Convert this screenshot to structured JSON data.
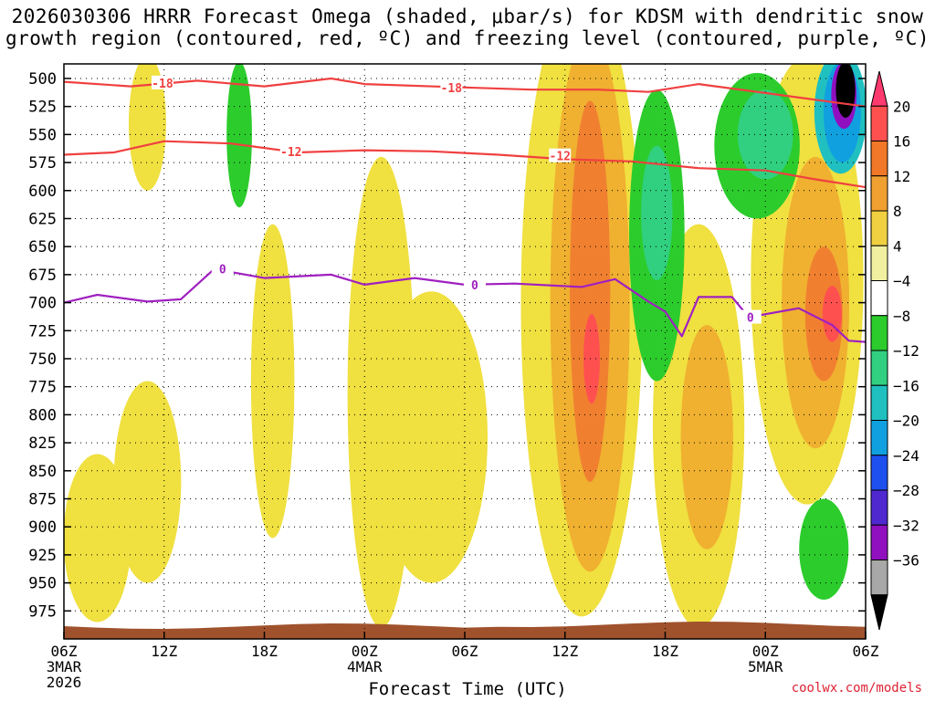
{
  "chart_data": {
    "type": "heatmap",
    "title_line1": "2026030306 HRRR Forecast Omega (shaded, μbar/s) for KDSM with dendritic snow",
    "title_line2": "growth region (contoured, red, ºC) and freezing level (contoured, purple, ºC)",
    "xlabel": "Forecast Time (UTC)",
    "x_ticks": [
      {
        "hour": 0,
        "label": "06Z",
        "sub1": "3MAR",
        "sub2": "2026"
      },
      {
        "hour": 6,
        "label": "12Z",
        "sub1": "",
        "sub2": ""
      },
      {
        "hour": 12,
        "label": "18Z",
        "sub1": "",
        "sub2": ""
      },
      {
        "hour": 18,
        "label": "00Z",
        "sub1": "4MAR",
        "sub2": ""
      },
      {
        "hour": 24,
        "label": "06Z",
        "sub1": "",
        "sub2": ""
      },
      {
        "hour": 30,
        "label": "12Z",
        "sub1": "",
        "sub2": ""
      },
      {
        "hour": 36,
        "label": "18Z",
        "sub1": "",
        "sub2": ""
      },
      {
        "hour": 42,
        "label": "00Z",
        "sub1": "5MAR",
        "sub2": ""
      },
      {
        "hour": 48,
        "label": "06Z",
        "sub1": "",
        "sub2": ""
      }
    ],
    "xlim": [
      0,
      48
    ],
    "y_ticks": [
      500,
      525,
      550,
      575,
      600,
      625,
      650,
      675,
      700,
      725,
      750,
      775,
      800,
      825,
      850,
      875,
      900,
      925,
      950,
      975
    ],
    "ylim": [
      487,
      1000
    ],
    "colorbar": {
      "labels": [
        "20",
        "16",
        "12",
        "8",
        "4",
        "−4",
        "−8",
        "−12",
        "−16",
        "−20",
        "−24",
        "−28",
        "−32",
        "−36"
      ],
      "colors_top_to_bottom": [
        "#ff3a6e",
        "#ff5050",
        "#f07828",
        "#f0a030",
        "#f0d040",
        "#f0f0a0",
        "#ffffff",
        "#2ccc2c",
        "#30d080",
        "#20c0c0",
        "#10a0e0",
        "#1e50f0",
        "#5028d0",
        "#9010c0",
        "#a8a8a8",
        "#000000"
      ]
    },
    "contours": [
      {
        "name": "minus18",
        "label": "-18",
        "color": "#f04040",
        "points": [
          [
            0,
            503
          ],
          [
            4,
            507
          ],
          [
            8,
            502
          ],
          [
            12,
            507
          ],
          [
            16,
            500
          ],
          [
            18,
            505
          ],
          [
            24,
            508
          ],
          [
            28,
            510
          ],
          [
            32,
            510
          ],
          [
            35,
            512
          ],
          [
            38,
            505
          ],
          [
            42,
            513
          ],
          [
            46,
            521
          ],
          [
            48,
            525
          ]
        ]
      },
      {
        "name": "minus12",
        "label": "-12",
        "color": "#f04040",
        "points": [
          [
            0,
            568
          ],
          [
            3,
            566
          ],
          [
            6,
            556
          ],
          [
            10,
            558
          ],
          [
            14,
            566
          ],
          [
            18,
            564
          ],
          [
            22,
            565
          ],
          [
            26,
            568
          ],
          [
            30,
            572
          ],
          [
            34,
            574
          ],
          [
            38,
            580
          ],
          [
            42,
            582
          ],
          [
            45,
            590
          ],
          [
            48,
            597
          ]
        ]
      },
      {
        "name": "freezing0",
        "label": "0",
        "color": "#a020c0",
        "points": [
          [
            0,
            700
          ],
          [
            2,
            693
          ],
          [
            5,
            699
          ],
          [
            7,
            697
          ],
          [
            9,
            670
          ],
          [
            12,
            678
          ],
          [
            16,
            675
          ],
          [
            18,
            684
          ],
          [
            21,
            678
          ],
          [
            24,
            684
          ],
          [
            27,
            683
          ],
          [
            31,
            686
          ],
          [
            33,
            679
          ],
          [
            35,
            699
          ],
          [
            36,
            708
          ],
          [
            37,
            730
          ],
          [
            38,
            695
          ],
          [
            40,
            695
          ],
          [
            41,
            713
          ],
          [
            44,
            705
          ],
          [
            46,
            720
          ],
          [
            47,
            734
          ],
          [
            48,
            735
          ]
        ]
      }
    ],
    "contour_labels": [
      {
        "text": "-18",
        "hour": 5.9,
        "p": 504
      },
      {
        "text": "-18",
        "hour": 23.2,
        "p": 508
      },
      {
        "text": "-12",
        "hour": 13.6,
        "p": 565
      },
      {
        "text": "-12",
        "hour": 29.7,
        "p": 569
      },
      {
        "text": "0",
        "hour": 9.5,
        "p": 670
      },
      {
        "text": "0",
        "hour": 24.6,
        "p": 684
      },
      {
        "text": "0",
        "hour": 41.1,
        "p": 713
      }
    ],
    "omega_shading": [
      {
        "band": "4-8",
        "color": "#f0e040",
        "hour": 5.0,
        "p": 540,
        "w": 1.0,
        "h": 120
      },
      {
        "band": "4-8",
        "color": "#f0e040",
        "hour": 12.5,
        "p": 770,
        "w": 1.2,
        "h": 280
      },
      {
        "band": "4-8",
        "color": "#f0e040",
        "hour": 19.0,
        "p": 780,
        "w": 2.0,
        "h": 420
      },
      {
        "band": "4-8",
        "color": "#f0e040",
        "hour": 22.0,
        "p": 820,
        "w": 3.5,
        "h": 260
      },
      {
        "band": "4-8",
        "color": "#f0e040",
        "hour": 31.0,
        "p": 700,
        "w": 3.8,
        "h": 560
      },
      {
        "band": "4-8",
        "color": "#f0e040",
        "hour": 38.0,
        "p": 810,
        "w": 2.8,
        "h": 360
      },
      {
        "band": "4-8",
        "color": "#f0e040",
        "hour": 44.5,
        "p": 680,
        "w": 3.5,
        "h": 400
      },
      {
        "band": "4-8",
        "color": "#f0e040",
        "hour": 2.0,
        "p": 910,
        "w": 2.0,
        "h": 150
      },
      {
        "band": "4-8",
        "color": "#f0e040",
        "hour": 5.0,
        "p": 860,
        "w": 2.0,
        "h": 180
      },
      {
        "band": "8-12",
        "color": "#f0b030",
        "hour": 31.5,
        "p": 700,
        "w": 2.4,
        "h": 480
      },
      {
        "band": "8-12",
        "color": "#f0b030",
        "hour": 38.5,
        "p": 820,
        "w": 1.5,
        "h": 200
      },
      {
        "band": "8-12",
        "color": "#f0b030",
        "hour": 45.0,
        "p": 700,
        "w": 2.0,
        "h": 260
      },
      {
        "band": "12-16",
        "color": "#f08030",
        "hour": 31.5,
        "p": 690,
        "w": 1.1,
        "h": 340
      },
      {
        "band": "12-16",
        "color": "#f08030",
        "hour": 45.5,
        "p": 710,
        "w": 1.0,
        "h": 120
      },
      {
        "band": "16-20",
        "color": "#ff5050",
        "hour": 31.6,
        "p": 750,
        "w": 0.3,
        "h": 80
      },
      {
        "band": "16-20",
        "color": "#ff5050",
        "hour": 46.0,
        "p": 710,
        "w": 0.4,
        "h": 50
      },
      {
        "band": "-4--8",
        "color": "#2ccc2c",
        "hour": 10.5,
        "p": 550,
        "w": 0.6,
        "h": 130
      },
      {
        "band": "-4--8",
        "color": "#2ccc2c",
        "hour": 35.5,
        "p": 640,
        "w": 1.6,
        "h": 260
      },
      {
        "band": "-4--8",
        "color": "#2ccc2c",
        "hour": 41.5,
        "p": 560,
        "w": 2.6,
        "h": 130
      },
      {
        "band": "-4--8",
        "color": "#2ccc2c",
        "hour": 45.5,
        "p": 920,
        "w": 1.4,
        "h": 90
      },
      {
        "band": "-8--12",
        "color": "#30d080",
        "hour": 35.5,
        "p": 620,
        "w": 0.8,
        "h": 120
      },
      {
        "band": "-8--12",
        "color": "#30d080",
        "hour": 42.0,
        "p": 550,
        "w": 1.6,
        "h": 80
      },
      {
        "band": "-12--16",
        "color": "#20c0c0",
        "hour": 46.5,
        "p": 530,
        "w": 1.5,
        "h": 110
      },
      {
        "band": "-16--20",
        "color": "#10a0e0",
        "hour": 46.6,
        "p": 530,
        "w": 1.0,
        "h": 90
      },
      {
        "band": "-28--32",
        "color": "#9010c0",
        "hour": 46.7,
        "p": 515,
        "w": 0.6,
        "h": 60
      },
      {
        "band": "<-36",
        "color": "#000000",
        "hour": 46.8,
        "p": 510,
        "w": 0.4,
        "h": 50
      }
    ]
  },
  "credit": "coolwx.com/models"
}
